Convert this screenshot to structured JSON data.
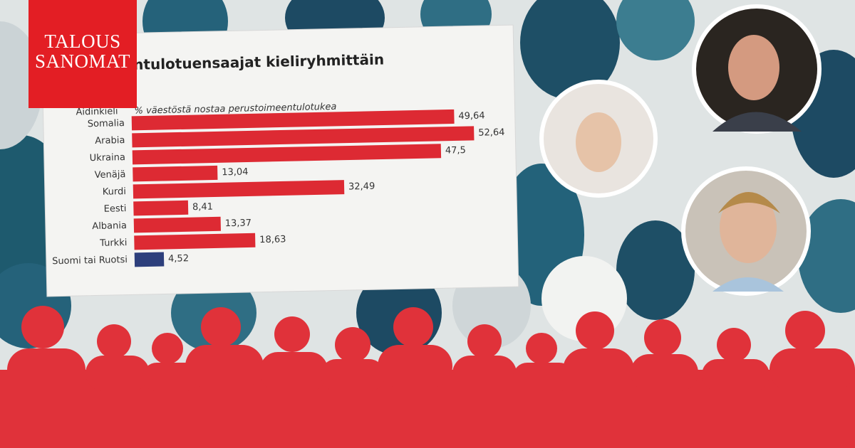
{
  "logo": {
    "lines": [
      "TALOUS",
      "SANOMAT"
    ]
  },
  "chart_data": {
    "type": "bar",
    "orientation": "horizontal",
    "title": "ntulotuensaajat kieliryhmittäin",
    "category_header": "Äidinkieli",
    "subtitle": "% väestöstä nostaa perustoimeentulotukea",
    "categories": [
      "Somalia",
      "Arabia",
      "Ukraina",
      "Venäjä",
      "Kurdi",
      "Eesti",
      "Albania",
      "Turkki",
      "Suomi tai Ruotsi"
    ],
    "values": [
      49.64,
      52.64,
      47.5,
      13.04,
      32.49,
      8.41,
      13.37,
      18.63,
      4.52
    ],
    "value_labels": [
      "49,64",
      "52,64",
      "47,5",
      "13,04",
      "32,49",
      "8,41",
      "13,37",
      "18,63",
      "4,52"
    ],
    "colors": [
      "#dd2a33",
      "#dd2a33",
      "#dd2a33",
      "#dd2a33",
      "#dd2a33",
      "#dd2a33",
      "#dd2a33",
      "#dd2a33",
      "#2d3f7c"
    ]
  }
}
